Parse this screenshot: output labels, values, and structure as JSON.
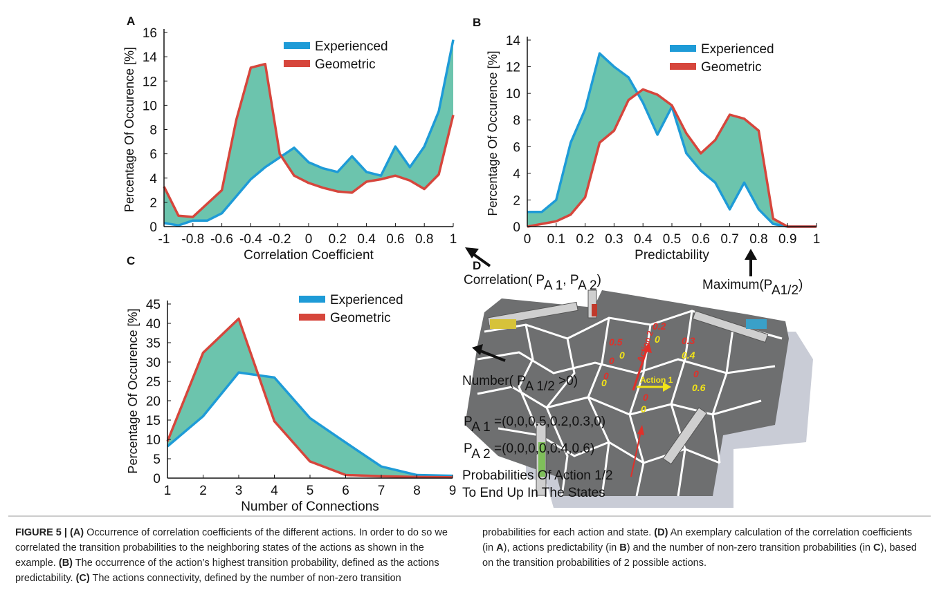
{
  "chart_data": [
    {
      "type": "line",
      "panel_label": "A",
      "xlabel": "Correlation Coefficient",
      "ylabel": "Percentage Of Occurence [%]",
      "x": [
        -1,
        -0.9,
        -0.8,
        -0.7,
        -0.6,
        -0.5,
        -0.4,
        -0.3,
        -0.2,
        -0.1,
        0,
        0.1,
        0.2,
        0.3,
        0.4,
        0.5,
        0.6,
        0.7,
        0.8,
        0.9,
        1
      ],
      "series": [
        {
          "name": "Experienced",
          "color": "#1e9bd7",
          "values": [
            0.3,
            0.1,
            0.5,
            0.5,
            1.1,
            2.5,
            3.9,
            4.9,
            5.7,
            6.5,
            5.3,
            4.8,
            4.5,
            5.8,
            4.5,
            4.2,
            6.6,
            4.9,
            6.6,
            9.5,
            15.4
          ]
        },
        {
          "name": "Geometric",
          "color": "#d6463c",
          "values": [
            3.3,
            0.9,
            0.8,
            1.9,
            3.0,
            8.8,
            13.1,
            13.4,
            6.0,
            4.2,
            3.6,
            3.2,
            2.9,
            2.8,
            3.7,
            3.9,
            4.2,
            3.8,
            3.1,
            4.3,
            9.2
          ]
        }
      ],
      "fill_between": "#6cc4ad",
      "xlim": [
        -1,
        1
      ],
      "xticks": [
        -1,
        -0.8,
        -0.6,
        -0.4,
        -0.2,
        0,
        0.2,
        0.4,
        0.6,
        0.8,
        1
      ],
      "ylim": [
        0,
        16
      ],
      "yticks": [
        0,
        2,
        4,
        6,
        8,
        10,
        12,
        14,
        16
      ]
    },
    {
      "type": "line",
      "panel_label": "B",
      "xlabel": "Predictability",
      "ylabel": "Percentage Of Occurence [%]",
      "x": [
        0,
        0.05,
        0.1,
        0.15,
        0.2,
        0.25,
        0.3,
        0.35,
        0.4,
        0.45,
        0.5,
        0.55,
        0.6,
        0.65,
        0.7,
        0.75,
        0.8,
        0.85,
        0.9,
        0.95,
        1
      ],
      "series": [
        {
          "name": "Experienced",
          "color": "#1e9bd7",
          "values": [
            1.1,
            1.1,
            2.0,
            6.3,
            8.8,
            13.0,
            12.0,
            11.2,
            9.3,
            6.9,
            9.0,
            5.5,
            4.2,
            3.3,
            1.3,
            3.3,
            1.3,
            0.2,
            0,
            0,
            0
          ]
        },
        {
          "name": "Geometric",
          "color": "#d6463c",
          "values": [
            0,
            0.2,
            0.4,
            0.9,
            2.2,
            6.3,
            7.2,
            9.5,
            10.3,
            9.9,
            9.1,
            7.0,
            5.5,
            6.5,
            8.4,
            8.1,
            7.2,
            0.6,
            0,
            0,
            0
          ]
        }
      ],
      "fill_between": "#6cc4ad",
      "xlim": [
        0,
        1
      ],
      "xticks": [
        0,
        0.1,
        0.2,
        0.3,
        0.4,
        0.5,
        0.6,
        0.7,
        0.8,
        0.9,
        1
      ],
      "ylim": [
        0,
        14
      ],
      "yticks": [
        0,
        2,
        4,
        6,
        8,
        10,
        12,
        14
      ]
    },
    {
      "type": "line",
      "panel_label": "C",
      "xlabel": "Number of Connections",
      "ylabel": "Percentage Of Occurence [%]",
      "x": [
        1,
        2,
        3,
        4,
        5,
        6,
        7,
        8,
        9
      ],
      "series": [
        {
          "name": "Experienced",
          "color": "#1e9bd7",
          "values": [
            8.2,
            16,
            27.3,
            26,
            15.5,
            9.2,
            3.0,
            0.8,
            0.6
          ]
        },
        {
          "name": "Geometric",
          "color": "#d6463c",
          "values": [
            9.5,
            32.4,
            41.2,
            14.7,
            4.3,
            0.8,
            0.5,
            0.3,
            0.2
          ]
        }
      ],
      "fill_between": "#6cc4ad",
      "xlim": [
        1,
        9
      ],
      "xticks": [
        1,
        2,
        3,
        4,
        5,
        6,
        7,
        8,
        9
      ],
      "ylim": [
        0,
        45
      ],
      "yticks": [
        0,
        5,
        10,
        15,
        20,
        25,
        30,
        35,
        40,
        45
      ]
    }
  ],
  "panel_d": {
    "label": "D",
    "correlation": [
      {
        "text": "Correlation( "
      },
      {
        "text": "P"
      },
      {
        "text": "A 1",
        "sub": true
      },
      {
        "text": ", "
      },
      {
        "text": "P"
      },
      {
        "text": "A 2",
        "sub": true
      },
      {
        "text": ")"
      }
    ],
    "maximum": [
      {
        "text": "Maximum(P"
      },
      {
        "text": "A1/2",
        "sub": true
      },
      {
        "text": ")"
      }
    ],
    "number": [
      {
        "text": "Number( P"
      },
      {
        "text": "A 1/2",
        "sub": true
      },
      {
        "text": " >0)"
      }
    ],
    "p_a1": [
      {
        "text": "P"
      },
      {
        "text": "A 1",
        "sub": true
      },
      {
        "text": " =(0,0,0.5,0.2,0.3,0)"
      }
    ],
    "p_a2": [
      {
        "text": "P"
      },
      {
        "text": "A 2",
        "sub": true
      },
      {
        "text": " =(0,0,0,0,0.4,0.6)"
      }
    ],
    "probabilities": [
      "Probabilities Of Action 1/2",
      "To End Up In The States"
    ],
    "photo_labels": [
      {
        "text": "0.2",
        "color": "#e0302a"
      },
      {
        "text": "0.5",
        "color": "#e0302a"
      },
      {
        "text": "0",
        "color": "#e0302a"
      },
      {
        "text": "0",
        "color": "#e0302a"
      },
      {
        "text": "0.3",
        "color": "#e0302a"
      },
      {
        "text": "0",
        "color": "#e0302a"
      },
      {
        "text": "0",
        "color": "#e0302a"
      },
      {
        "text": "0",
        "color": "#f2e318"
      },
      {
        "text": "0",
        "color": "#f2e318"
      },
      {
        "text": "0.4",
        "color": "#f2e318"
      },
      {
        "text": "0",
        "color": "#f2e318"
      },
      {
        "text": "0.6",
        "color": "#f2e318"
      },
      {
        "text": "0",
        "color": "#f2e318"
      }
    ],
    "actions": [
      {
        "text": "Action 2",
        "color": "#e0302a"
      },
      {
        "text": "Action 1",
        "color": "#f2e318"
      }
    ]
  },
  "caption": [
    {
      "text": "FIGURE 5 | (A)",
      "bold": true
    },
    {
      "text": " Occurrence of correlation coefficients of the different actions. In order to do so we correlated the transition probabilities to the neighboring states of the actions as shown in the example. "
    },
    {
      "text": "(B)",
      "bold": true
    },
    {
      "text": " The occurrence of the action’s highest transition probability, defined as the actions predictability. "
    },
    {
      "text": "(C)",
      "bold": true
    },
    {
      "text": " The actions connectivity, defined by the number of non-zero transition probabilities for each action and state. "
    },
    {
      "text": "(D)",
      "bold": true
    },
    {
      "text": " An exemplary calculation of the correlation coefficients (in "
    },
    {
      "text": "A",
      "bold": true
    },
    {
      "text": "), actions predictability (in "
    },
    {
      "text": "B",
      "bold": true
    },
    {
      "text": ") and the number of non-zero transition probabilities (in "
    },
    {
      "text": "C",
      "bold": true
    },
    {
      "text": "), based on the transition probabilities of 2 possible actions."
    }
  ]
}
